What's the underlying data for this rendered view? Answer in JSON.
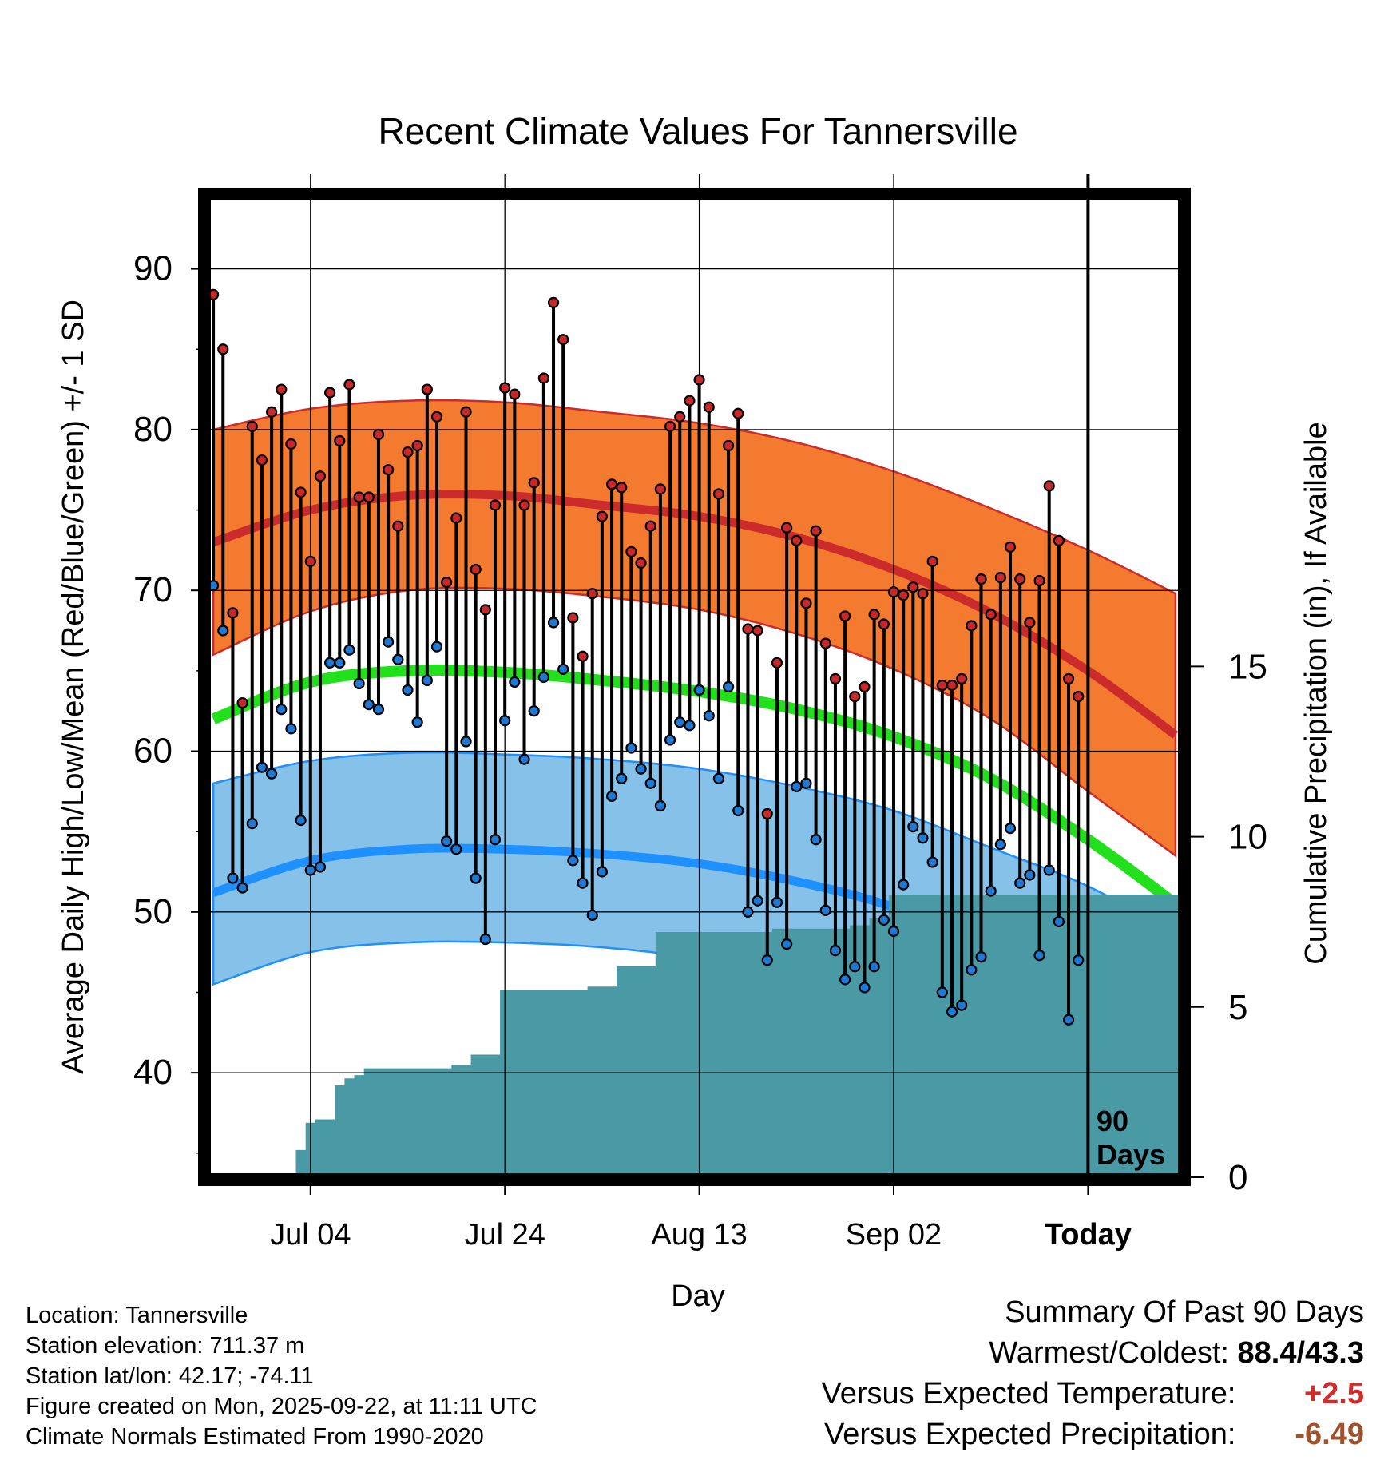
{
  "chart_data": {
    "type": "line",
    "title": "Recent Climate Values For Tannersville",
    "xlabel": "Day",
    "ylabel": "Average Daily High/Low/Mean (Red/Blue/Green) +/- 1 SD",
    "y2label": "Cumulative Precipitation (in), If Available",
    "xlim": [
      -10.5,
      89.5
    ],
    "ylim": [
      33.5,
      94.5
    ],
    "y2lim": [
      0,
      28.8
    ],
    "yticks": [
      40,
      50,
      60,
      70,
      80,
      90
    ],
    "y2ticks": [
      0,
      5,
      10,
      15
    ],
    "xticks": [
      {
        "day": 0,
        "label": "Jul 04"
      },
      {
        "day": 20,
        "label": "Jul 24"
      },
      {
        "day": 40,
        "label": "Aug 13"
      },
      {
        "day": 60,
        "label": "Sep 02"
      },
      {
        "day": 80,
        "label": "Today"
      }
    ],
    "today_marker": {
      "day": 80,
      "label_line1": "90",
      "label_line2": "Days"
    },
    "normals": {
      "days": [
        -10,
        0,
        10,
        20,
        30,
        40,
        50,
        60,
        70,
        80,
        89
      ],
      "high_mean": [
        73.0,
        75.0,
        75.9,
        75.9,
        75.3,
        74.6,
        73.3,
        71.3,
        68.6,
        65.0,
        61.0
      ],
      "high_upper": [
        80.0,
        81.3,
        81.8,
        81.7,
        81.1,
        80.4,
        79.2,
        77.4,
        75.1,
        72.5,
        69.8
      ],
      "high_lower": [
        66.0,
        68.7,
        70.0,
        70.1,
        69.6,
        68.8,
        67.3,
        65.1,
        62.0,
        57.5,
        53.5
      ],
      "mean": [
        62.0,
        64.3,
        65.0,
        64.9,
        64.4,
        63.7,
        62.6,
        60.9,
        58.3,
        54.5,
        50.5
      ],
      "low_mean": [
        51.2,
        53.2,
        53.9,
        53.9,
        53.6,
        53.0,
        51.9,
        50.3,
        47.8,
        44.3,
        40.5
      ],
      "low_upper": [
        58.0,
        59.4,
        59.9,
        59.8,
        59.5,
        58.9,
        57.8,
        56.3,
        54.0,
        51.6,
        48.6
      ],
      "low_lower": [
        45.5,
        47.5,
        48.1,
        48.1,
        47.8,
        47.1,
        45.9,
        44.2,
        41.4,
        37.0,
        33.5
      ]
    },
    "series": [
      {
        "name": "Daily High",
        "color": "#c8282a",
        "values": [
          88.4,
          85.0,
          68.6,
          63.0,
          80.2,
          78.1,
          81.1,
          82.5,
          79.1,
          76.1,
          71.8,
          77.1,
          82.3,
          79.3,
          82.8,
          75.8,
          75.8,
          79.7,
          77.5,
          74.0,
          78.6,
          79.0,
          82.5,
          80.8,
          70.5,
          74.5,
          81.1,
          71.3,
          68.8,
          75.3,
          82.6,
          82.2,
          75.3,
          76.7,
          83.2,
          87.9,
          85.6,
          68.3,
          65.9,
          69.8,
          74.6,
          76.6,
          76.4,
          72.4,
          71.7,
          74.0,
          76.3,
          80.2,
          80.8,
          81.8,
          83.1,
          81.4,
          76.0,
          79.0,
          81.0,
          67.6,
          67.5,
          56.1,
          65.5,
          73.9,
          73.1,
          69.2,
          73.7,
          66.7,
          64.5,
          68.4,
          63.4,
          64.0,
          68.5,
          67.9,
          69.9,
          69.7,
          70.2,
          69.8,
          71.8,
          64.1,
          64.1,
          64.5,
          67.8,
          70.7,
          68.5,
          70.8,
          72.7,
          70.7,
          68.0,
          70.6,
          76.5,
          73.1,
          64.5,
          63.4
        ]
      },
      {
        "name": "Daily Low",
        "color": "#1f78d1",
        "values": [
          70.3,
          67.5,
          52.1,
          51.5,
          55.5,
          59.0,
          58.6,
          62.6,
          61.4,
          55.7,
          52.6,
          52.8,
          65.5,
          65.5,
          66.3,
          64.2,
          62.9,
          62.6,
          66.8,
          65.7,
          63.8,
          61.8,
          64.4,
          66.5,
          54.4,
          53.9,
          60.6,
          52.1,
          48.3,
          54.5,
          61.9,
          64.3,
          59.5,
          62.5,
          64.6,
          68.0,
          65.1,
          53.2,
          51.8,
          49.8,
          52.5,
          57.2,
          58.3,
          60.2,
          58.9,
          58.0,
          56.6,
          60.7,
          61.8,
          61.6,
          63.8,
          62.2,
          58.3,
          64.0,
          56.3,
          50.0,
          50.7,
          47.0,
          50.6,
          48.0,
          57.8,
          58.0,
          54.5,
          50.1,
          47.6,
          45.8,
          46.6,
          45.3,
          46.6,
          49.5,
          48.8,
          51.7,
          55.3,
          54.6,
          53.1,
          45.0,
          43.8,
          44.2,
          46.4,
          47.2,
          51.3,
          54.2,
          55.2,
          51.8,
          52.3,
          47.3,
          52.6,
          49.4,
          43.3,
          47.0
        ]
      },
      {
        "name": "Cumulative Precipitation",
        "color": "#4a9aa5",
        "days": [
          -2.5,
          -1.5,
          -0.5,
          0.5,
          1.5,
          2.5,
          3.5,
          4.5,
          5.5,
          6.5,
          7.5,
          8.5,
          9.5,
          10.5,
          11.5,
          12.5,
          13.5,
          14.5,
          15.5,
          16.5,
          17.5,
          18.5,
          19.5,
          20.5,
          21.5,
          22.5,
          23.5,
          24.5,
          25.5,
          26.5,
          27.5,
          28.5,
          29.5,
          30.5,
          31.5,
          32.5,
          33.5,
          34.5,
          35.5,
          36.5,
          37.5,
          38.5,
          39.5,
          40.5,
          41.5,
          42.5,
          43.5,
          44.5,
          45.5,
          46.5,
          47.5,
          48.5,
          49.5,
          50.5,
          51.5,
          52.5,
          53.5,
          54.5,
          55.5,
          56.5,
          57.5,
          58.5,
          59.5,
          60.5,
          61.5,
          62.5,
          63.5,
          64.5,
          65.5,
          66.5,
          67.5,
          68.5,
          69.5,
          70.5,
          71.5,
          72.5,
          73.5,
          74.5,
          75.5,
          76.5,
          77.5,
          78.5,
          79.5,
          80.5,
          81.5,
          82.5,
          83.5,
          84.5,
          85.5,
          86.5,
          87.5,
          88.5,
          89.5
        ],
        "values": [
          0.0,
          0.8,
          1.6,
          1.7,
          1.7,
          2.7,
          2.9,
          3.0,
          3.2,
          3.2,
          3.2,
          3.2,
          3.2,
          3.2,
          3.2,
          3.2,
          3.2,
          3.3,
          3.3,
          3.6,
          3.6,
          3.6,
          5.5,
          5.5,
          5.5,
          5.5,
          5.5,
          5.5,
          5.5,
          5.5,
          5.5,
          5.6,
          5.6,
          5.6,
          6.2,
          6.2,
          6.2,
          6.2,
          7.2,
          7.2,
          7.2,
          7.2,
          7.2,
          7.2,
          7.2,
          7.2,
          7.2,
          7.2,
          7.2,
          7.2,
          7.3,
          7.3,
          7.3,
          7.3,
          7.3,
          7.3,
          7.3,
          7.3,
          7.4,
          7.4,
          7.6,
          7.6,
          8.3,
          8.3,
          8.3,
          8.3,
          8.3,
          8.3,
          8.3,
          8.3,
          8.3,
          8.3,
          8.3,
          8.3,
          8.3,
          8.3,
          8.3,
          8.3,
          8.3,
          8.3,
          8.3,
          8.3,
          8.3,
          8.3,
          8.3,
          8.3,
          8.3,
          8.3,
          8.3,
          8.3,
          8.3,
          8.3,
          8.3
        ]
      }
    ],
    "colors": {
      "high_band": "#f47a30",
      "high_line": "#cc2b2b",
      "low_band": "#85c1e8",
      "low_line": "#1e90ff",
      "mean_line": "#22e01c",
      "precip": "#4a9aa5"
    }
  },
  "station": {
    "location": "Location: Tannersville",
    "elevation": "Station elevation: 711.37 m",
    "latlon": "Station lat/lon: 42.17; -74.11",
    "created": "Figure created on Mon, 2025-09-22, at 11:11 UTC",
    "normals": "Climate Normals Estimated From 1990-2020"
  },
  "summary": {
    "title": "Summary Of Past 90 Days",
    "warm_cold_label": "Warmest/Coldest:",
    "warm_cold_value": "88.4/43.3",
    "temp_label": "Versus Expected Temperature:",
    "temp_value": "+2.5",
    "temp_color": "#d42a2a",
    "precip_label": "Versus Expected Precipitation:",
    "precip_value": "-6.49",
    "precip_color": "#a0522d"
  }
}
